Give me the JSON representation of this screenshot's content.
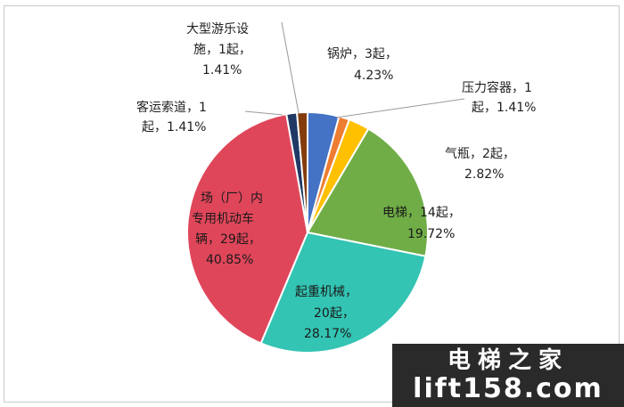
{
  "chart_data": {
    "type": "pie",
    "title": "",
    "slices": [
      {
        "label": "锅炉",
        "count_text": "3起",
        "count": 3,
        "percent_text": "4.23%",
        "percent": 4.23,
        "color": "#4472c4"
      },
      {
        "label": "压力容器",
        "count_text": "1起",
        "count": 1,
        "percent_text": "1.41%",
        "percent": 1.41,
        "color": "#ed7d31"
      },
      {
        "label": "气瓶",
        "count_text": "2起",
        "count": 2,
        "percent_text": "2.82%",
        "percent": 2.82,
        "color": "#ffc000"
      },
      {
        "label": "电梯",
        "count_text": "14起",
        "count": 14,
        "percent_text": "19.72%",
        "percent": 19.72,
        "color": "#70ad47"
      },
      {
        "label": "起重机械",
        "count_text": "20起",
        "count": 20,
        "percent_text": "28.17%",
        "percent": 28.17,
        "color": "#33c4b3"
      },
      {
        "label": "场（厂）内专用机动车辆",
        "count_text": "29起",
        "count": 29,
        "percent_text": "40.85%",
        "percent": 40.85,
        "color": "#e0465a"
      },
      {
        "label": "客运索道",
        "count_text": "1起",
        "count": 1,
        "percent_text": "1.41%",
        "percent": 1.41,
        "color": "#203864"
      },
      {
        "label": "大型游乐设施",
        "count_text": "1起",
        "count": 1,
        "percent_text": "1.41%",
        "percent": 1.41,
        "color": "#843c0c"
      }
    ],
    "labels": {
      "boiler": [
        "锅炉，3起，",
        "4.23%"
      ],
      "pressure_vessel": [
        "压力容器，1",
        "起，1.41%"
      ],
      "cylinder": [
        "气瓶，2起，",
        "2.82%"
      ],
      "elevator": [
        "电梯，14起，",
        "19.72%"
      ],
      "crane": [
        "起重机械，",
        "20起，",
        "28.17%"
      ],
      "vehicle": [
        "场（厂）内",
        "专用机动车",
        "辆，29起，",
        "40.85%"
      ],
      "ropeway": [
        "客运索道，1",
        "起，1.41%"
      ],
      "amusement": [
        "大型游乐设",
        "施，1起，",
        "1.41%"
      ]
    },
    "legend": "none",
    "start_angle_deg": 0,
    "direction": "clockwise"
  },
  "watermark": {
    "line1": "电梯之家",
    "line2": "lift158.com"
  }
}
